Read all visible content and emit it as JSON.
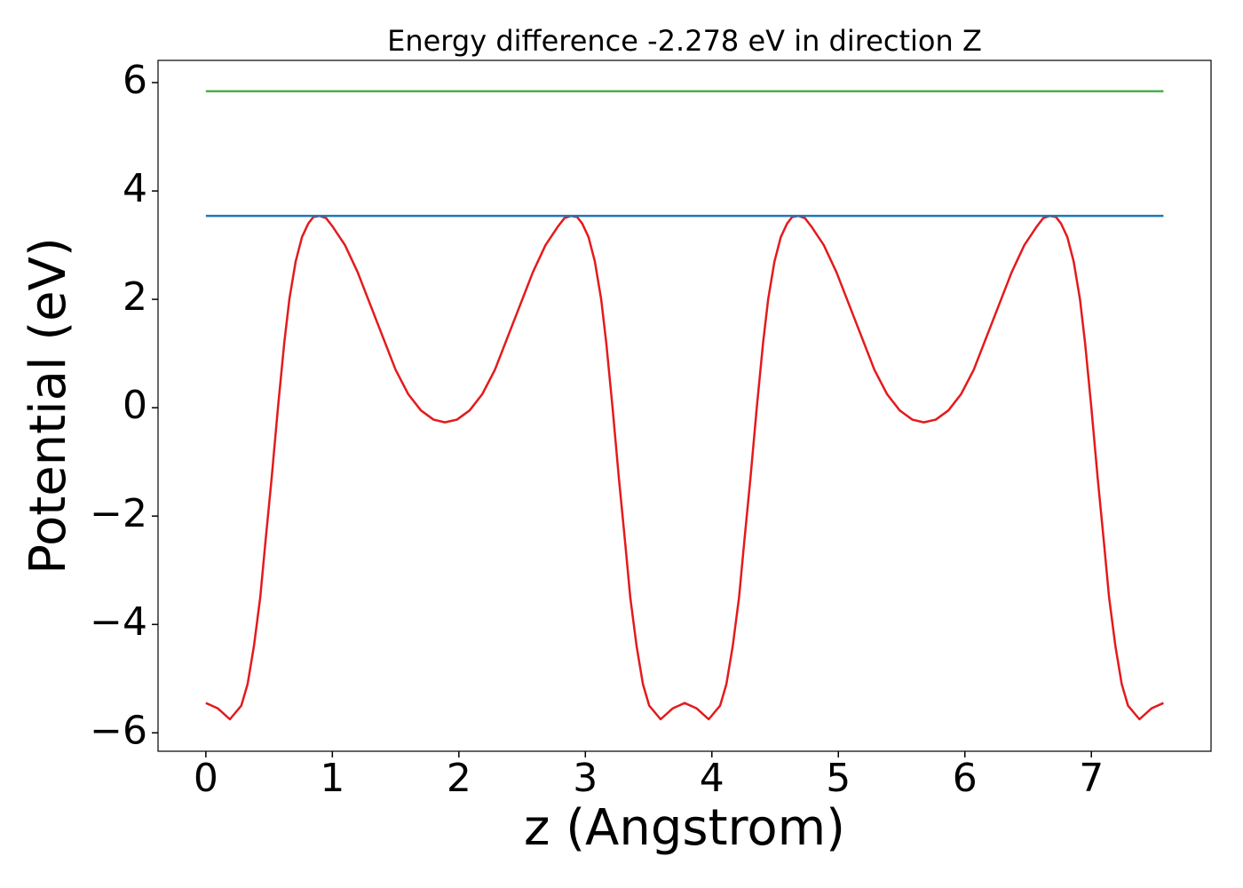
{
  "chart_data": {
    "type": "line",
    "title": "Energy difference -2.278 eV in direction Z",
    "xlabel": "z (Angstrom)",
    "ylabel": "Potential (eV)",
    "xlim": [
      -0.378,
      7.946
    ],
    "ylim": [
      -6.34,
      6.41
    ],
    "xticks": [
      0,
      1,
      2,
      3,
      4,
      5,
      6,
      7
    ],
    "yticks": [
      {
        "value": -6,
        "label": "−6"
      },
      {
        "value": -4,
        "label": "−4"
      },
      {
        "value": -2,
        "label": "−2"
      },
      0,
      2,
      4,
      6
    ],
    "grid": false,
    "series": [
      {
        "color": "#e41a1c",
        "x": [
          0,
          0.095,
          0.19,
          0.28,
          0.33,
          0.38,
          0.43,
          0.47,
          0.52,
          0.57,
          0.62,
          0.66,
          0.71,
          0.76,
          0.81,
          0.85,
          0.9,
          0.95,
          1.0,
          1.1,
          1.2,
          1.3,
          1.4,
          1.5,
          1.6,
          1.7,
          1.8,
          1.89,
          1.985,
          2.085,
          2.185,
          2.285,
          2.385,
          2.485,
          2.585,
          2.685,
          2.785,
          2.835,
          2.885,
          2.935,
          2.975,
          3.025,
          3.075,
          3.125,
          3.165,
          3.215,
          3.265,
          3.315,
          3.355,
          3.405,
          3.455,
          3.505,
          3.595,
          3.69,
          3.785,
          3.88,
          3.975,
          4.065,
          4.115,
          4.165,
          4.215,
          4.255,
          4.305,
          4.355,
          4.405,
          4.445,
          4.495,
          4.545,
          4.595,
          4.635,
          4.685,
          4.735,
          4.785,
          4.885,
          4.985,
          5.085,
          5.185,
          5.285,
          5.385,
          5.485,
          5.585,
          5.675,
          5.77,
          5.87,
          5.97,
          6.07,
          6.17,
          6.27,
          6.37,
          6.47,
          6.57,
          6.62,
          6.67,
          6.72,
          6.76,
          6.81,
          6.86,
          6.91,
          6.95,
          7.0,
          7.05,
          7.1,
          7.14,
          7.19,
          7.24,
          7.29,
          7.38,
          7.475,
          7.57
        ],
        "values": [
          -5.45,
          -5.55,
          -5.75,
          -5.5,
          -5.1,
          -4.4,
          -3.5,
          -2.5,
          -1.3,
          0,
          1.2,
          2.0,
          2.7,
          3.15,
          3.4,
          3.52,
          3.54,
          3.5,
          3.35,
          3.0,
          2.5,
          1.9,
          1.3,
          0.7,
          0.25,
          -0.05,
          -0.22,
          -0.27,
          -0.22,
          -0.05,
          0.25,
          0.7,
          1.3,
          1.9,
          2.5,
          3.0,
          3.35,
          3.5,
          3.54,
          3.52,
          3.4,
          3.15,
          2.7,
          2.0,
          1.2,
          0,
          -1.3,
          -2.5,
          -3.5,
          -4.4,
          -5.1,
          -5.5,
          -5.75,
          -5.55,
          -5.45,
          -5.55,
          -5.75,
          -5.5,
          -5.1,
          -4.4,
          -3.5,
          -2.5,
          -1.3,
          0,
          1.2,
          2.0,
          2.7,
          3.15,
          3.4,
          3.52,
          3.54,
          3.5,
          3.35,
          3.0,
          2.5,
          1.9,
          1.3,
          0.7,
          0.25,
          -0.05,
          -0.22,
          -0.27,
          -0.22,
          -0.05,
          0.25,
          0.7,
          1.3,
          1.9,
          2.5,
          3.0,
          3.35,
          3.5,
          3.54,
          3.52,
          3.4,
          3.15,
          2.7,
          2.0,
          1.2,
          0,
          -1.3,
          -2.5,
          -3.5,
          -4.4,
          -5.1,
          -5.5,
          -5.75,
          -5.55,
          -5.45
        ]
      },
      {
        "color": "#1f77b4",
        "x": [
          0,
          7.57
        ],
        "values": [
          3.54,
          3.54
        ]
      },
      {
        "color": "#4daf4a",
        "x": [
          0,
          7.57
        ],
        "values": [
          5.84,
          5.84
        ]
      }
    ]
  }
}
